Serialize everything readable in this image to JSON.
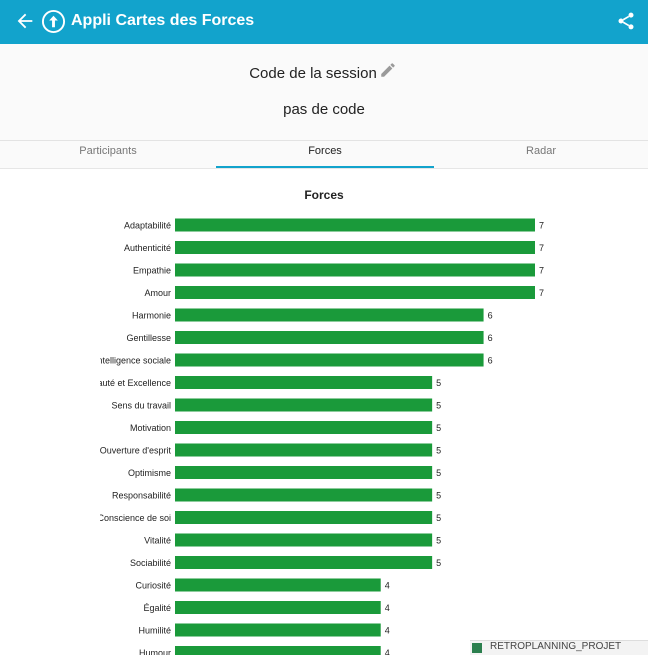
{
  "appbar": {
    "title": "Appli Cartes des Forces",
    "back_icon": "arrow-left-icon",
    "logo_icon": "arrow-up-circle-icon",
    "share_icon": "share-icon",
    "color": "#12a3cc"
  },
  "session": {
    "label": "Code de la session",
    "code": "pas de code",
    "edit_icon": "pencil-icon"
  },
  "tabs": [
    {
      "label": "Participants",
      "active": false
    },
    {
      "label": "Forces",
      "active": true
    },
    {
      "label": "Radar",
      "active": false
    }
  ],
  "taskbar_snippet": "RETROPLANNING_PROJET",
  "chart_data": {
    "type": "bar",
    "orientation": "horizontal",
    "title": "Forces",
    "bar_color": "#1a9a3a",
    "categories": [
      "Adaptabilité",
      "Authenticité",
      "Empathie",
      "Amour",
      "Harmonie",
      "Gentillesse",
      "Intelligence sociale",
      "Beauté et Excellence",
      "Sens du travail",
      "Motivation",
      "Ouverture d'esprit",
      "Optimisme",
      "Responsabilité",
      "Conscience de soi",
      "Vitalité",
      "Sociabilité",
      "Curiosité",
      "Égalité",
      "Humilité",
      "Humour"
    ],
    "values": [
      7,
      7,
      7,
      7,
      6,
      6,
      6,
      5,
      5,
      5,
      5,
      5,
      5,
      5,
      5,
      5,
      4,
      4,
      4,
      4
    ],
    "xlim": [
      0,
      7
    ]
  }
}
